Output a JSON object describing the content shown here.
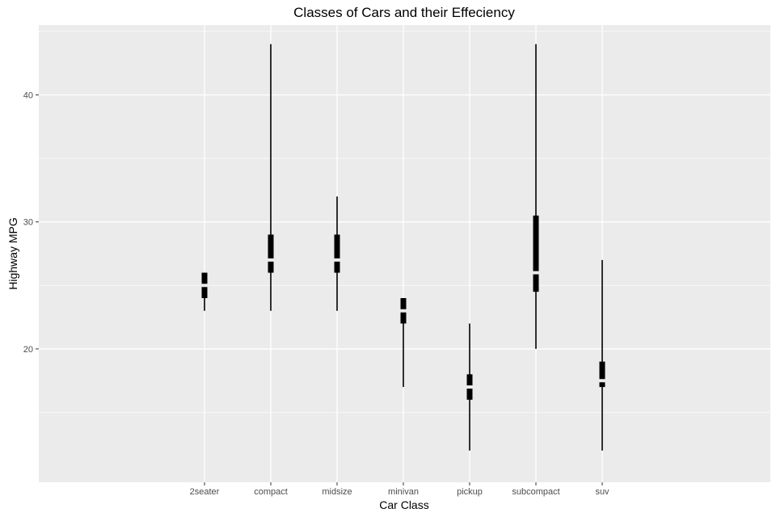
{
  "chart_data": {
    "type": "boxplot",
    "title": "Classes of Cars and their Effeciency",
    "xlabel": "Car Class",
    "ylabel": "Highway MPG",
    "categories": [
      "2seater",
      "compact",
      "midsize",
      "minivan",
      "pickup",
      "subcompact",
      "suv"
    ],
    "y_ticks": [
      20,
      30,
      40
    ],
    "ylim": [
      9.5,
      45.5
    ],
    "grid": true,
    "legend": "none",
    "colors": {
      "panel_bg": "#ebebeb",
      "grid": "#ffffff",
      "mark": "#000000"
    },
    "series": [
      {
        "category": "2seater",
        "min": 23,
        "q1": 24,
        "median": 25,
        "q3": 26,
        "max": 26
      },
      {
        "category": "compact",
        "min": 23,
        "q1": 26,
        "median": 27,
        "q3": 29,
        "max": 44
      },
      {
        "category": "midsize",
        "min": 23,
        "q1": 26,
        "median": 27,
        "q3": 29,
        "max": 32
      },
      {
        "category": "minivan",
        "min": 17,
        "q1": 22,
        "median": 23,
        "q3": 24,
        "max": 24
      },
      {
        "category": "pickup",
        "min": 12,
        "q1": 16,
        "median": 17,
        "q3": 18,
        "max": 22
      },
      {
        "category": "subcompact",
        "min": 20,
        "q1": 24.5,
        "median": 26,
        "q3": 30.5,
        "max": 44
      },
      {
        "category": "suv",
        "min": 12,
        "q1": 17,
        "median": 17.5,
        "q3": 19,
        "max": 27
      }
    ]
  }
}
